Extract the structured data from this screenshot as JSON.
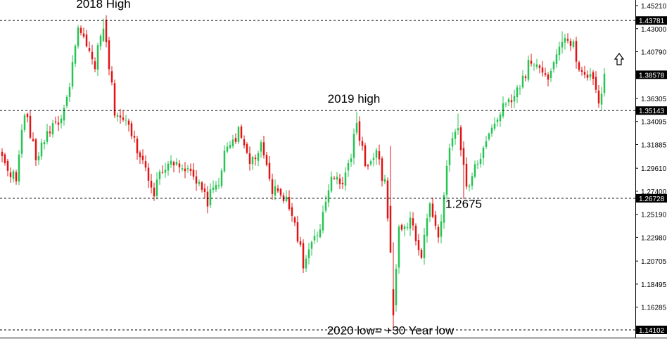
{
  "chart_data": {
    "type": "candlestick",
    "ylim": [
      1.1375,
      1.4545
    ],
    "y_ticks": [
      "1.45210",
      "1.43000",
      "1.40790",
      "1.36305",
      "1.34095",
      "1.31885",
      "1.29610",
      "1.27400",
      "1.25190",
      "1.22980",
      "1.20705",
      "1.18495",
      "1.16285"
    ],
    "levels": [
      {
        "label": "1.43781",
        "value": 1.43781
      },
      {
        "label": "1.38578",
        "value": 1.38578
      },
      {
        "label": "1.35143",
        "value": 1.35143
      },
      {
        "label": "1.26728",
        "value": 1.26728
      },
      {
        "label": "1.14102",
        "value": 1.14102
      }
    ],
    "dashed_levels": [
      1.43781,
      1.35143,
      1.26728,
      1.14102
    ],
    "annotations": [
      {
        "text": "2018 High",
        "candle_index": 36,
        "price": 1.45
      },
      {
        "text": "2019 high",
        "candle_index": 125,
        "price": 1.359
      },
      {
        "text": "1.2675",
        "candle_index": 164,
        "price": 1.258
      },
      {
        "text": "2020 low= +30 Year low",
        "candle_index": 138,
        "price": 1.1365
      }
    ],
    "colors": {
      "up": "#26c452",
      "down": "#e01414",
      "text": "#000000",
      "axis": "#000000"
    },
    "arrow_icon": "up-arrow-outline",
    "anchors": [
      [
        0,
        1.305
      ],
      [
        5,
        1.285
      ],
      [
        8,
        1.352
      ],
      [
        12,
        1.305
      ],
      [
        16,
        1.331
      ],
      [
        22,
        1.348
      ],
      [
        25,
        1.395
      ],
      [
        27,
        1.428
      ],
      [
        33,
        1.395
      ],
      [
        36,
        1.435
      ],
      [
        40,
        1.352
      ],
      [
        44,
        1.34
      ],
      [
        49,
        1.31
      ],
      [
        54,
        1.275
      ],
      [
        58,
        1.3
      ],
      [
        62,
        1.305
      ],
      [
        66,
        1.292
      ],
      [
        70,
        1.278
      ],
      [
        73,
        1.265
      ],
      [
        77,
        1.285
      ],
      [
        80,
        1.318
      ],
      [
        84,
        1.33
      ],
      [
        88,
        1.302
      ],
      [
        92,
        1.315
      ],
      [
        96,
        1.275
      ],
      [
        100,
        1.27
      ],
      [
        104,
        1.245
      ],
      [
        107,
        1.205
      ],
      [
        110,
        1.222
      ],
      [
        113,
        1.235
      ],
      [
        117,
        1.29
      ],
      [
        121,
        1.285
      ],
      [
        124,
        1.305
      ],
      [
        126,
        1.342
      ],
      [
        129,
        1.3
      ],
      [
        133,
        1.31
      ],
      [
        136,
        1.28
      ],
      [
        138,
        1.215
      ],
      [
        139,
        1.16
      ],
      [
        141,
        1.24
      ],
      [
        145,
        1.245
      ],
      [
        149,
        1.215
      ],
      [
        152,
        1.262
      ],
      [
        155,
        1.235
      ],
      [
        157,
        1.265
      ],
      [
        159,
        1.32
      ],
      [
        162,
        1.335
      ],
      [
        165,
        1.275
      ],
      [
        167,
        1.29
      ],
      [
        172,
        1.32
      ],
      [
        176,
        1.345
      ],
      [
        180,
        1.36
      ],
      [
        184,
        1.375
      ],
      [
        187,
        1.395
      ],
      [
        189,
        1.398
      ],
      [
        193,
        1.38
      ],
      [
        196,
        1.395
      ],
      [
        199,
        1.418
      ],
      [
        203,
        1.412
      ],
      [
        206,
        1.385
      ],
      [
        210,
        1.382
      ],
      [
        212,
        1.36
      ],
      [
        214,
        1.382
      ]
    ]
  }
}
